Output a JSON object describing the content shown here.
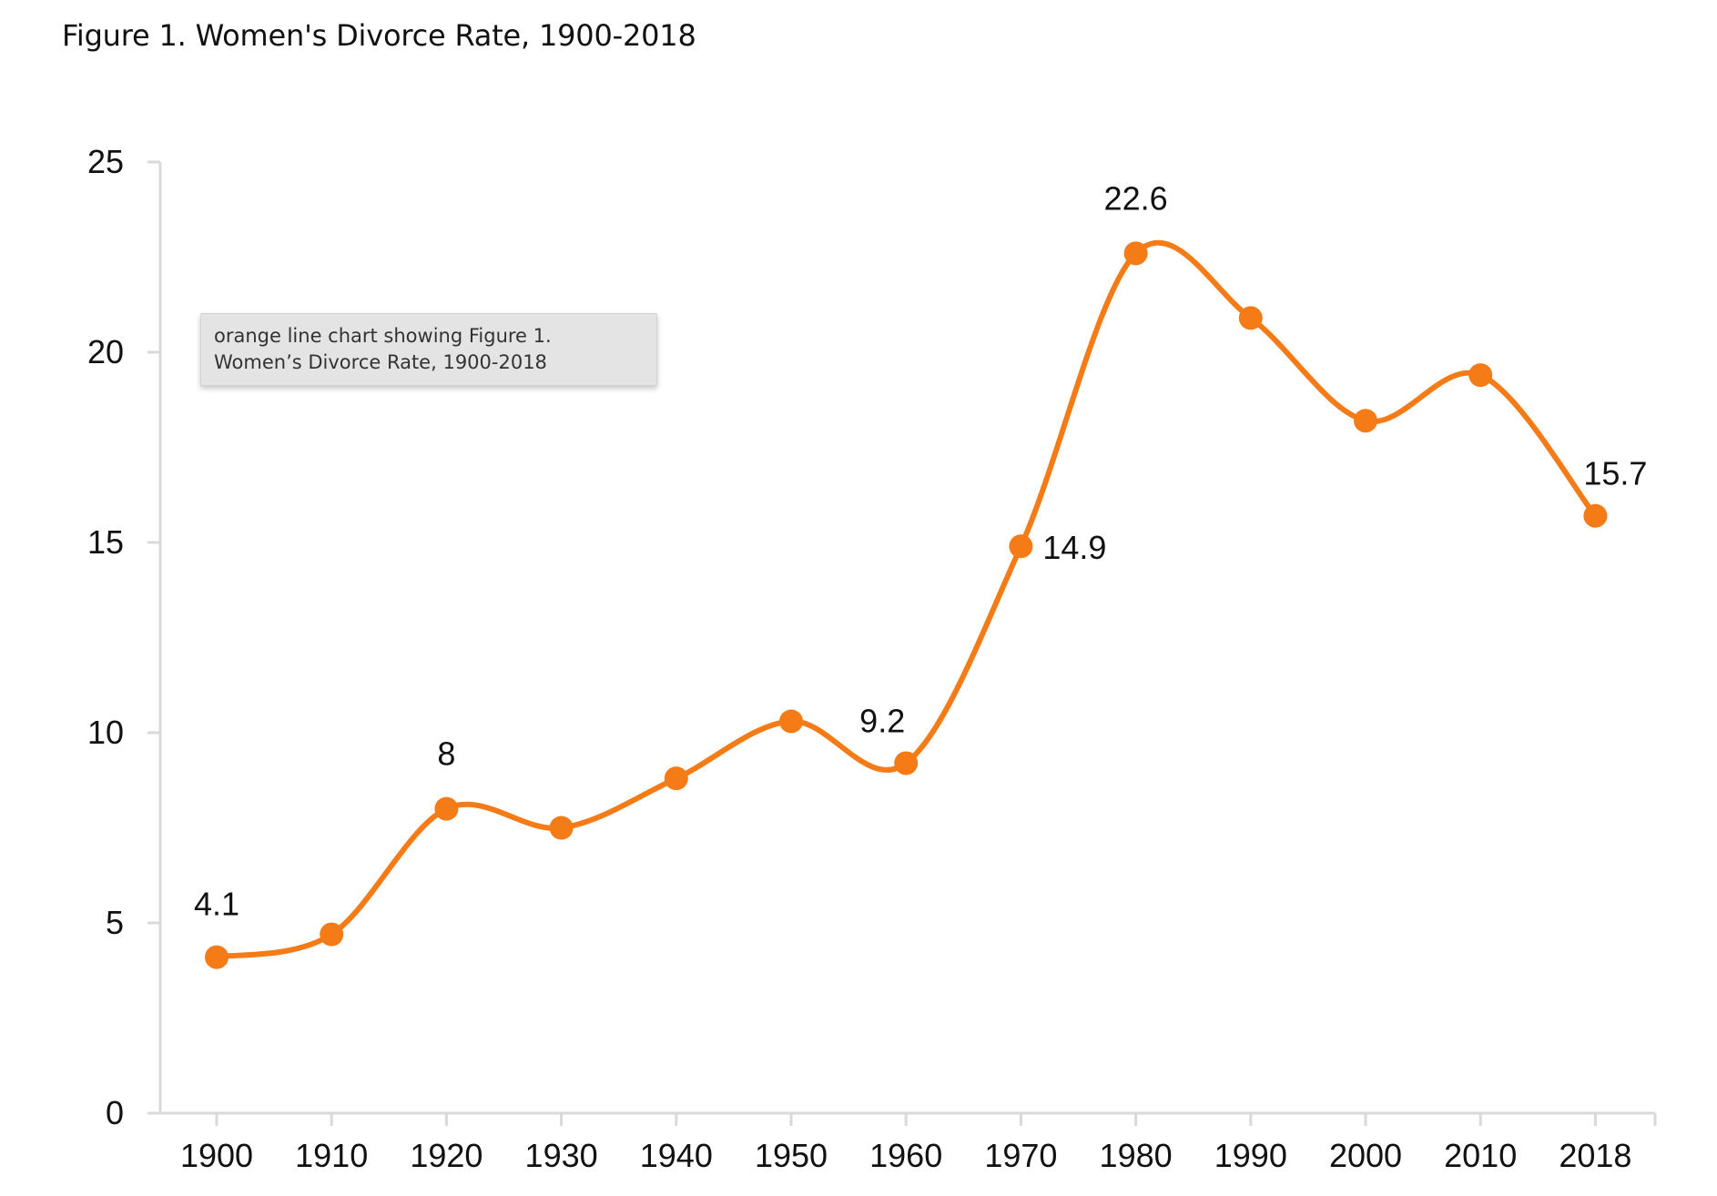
{
  "page": {
    "title": "Figure 1. Women's Divorce Rate, 1900-2018"
  },
  "tooltip": {
    "text": "orange line chart showing Figure 1. Women’s Divorce Rate, 1900-2018"
  },
  "chart_data": {
    "type": "line",
    "title": "",
    "xlabel": "",
    "ylabel": "",
    "categories": [
      "1900",
      "1910",
      "1920",
      "1930",
      "1940",
      "1950",
      "1960",
      "1970",
      "1980",
      "1990",
      "2000",
      "2010",
      "2018"
    ],
    "series": [
      {
        "values": [
          4.1,
          4.7,
          8,
          7.5,
          8.8,
          10.3,
          9.2,
          14.9,
          22.6,
          20.9,
          18.2,
          19.4,
          15.7
        ]
      }
    ],
    "data_labels": [
      {
        "category": "1900",
        "text": "4.1"
      },
      {
        "category": "1920",
        "text": "8"
      },
      {
        "category": "1960",
        "text": "9.2"
      },
      {
        "category": "1970",
        "text": "14.9"
      },
      {
        "category": "1980",
        "text": "22.6"
      },
      {
        "category": "2018",
        "text": "15.7"
      }
    ],
    "yticks": [
      0,
      5,
      10,
      15,
      20,
      25
    ],
    "ylim": [
      0,
      25
    ],
    "line_color": "#f47b16",
    "marker_color": "#f47b16",
    "axis_color": "#d9d9d9",
    "smooth": true,
    "grid": false,
    "legend": "none"
  }
}
